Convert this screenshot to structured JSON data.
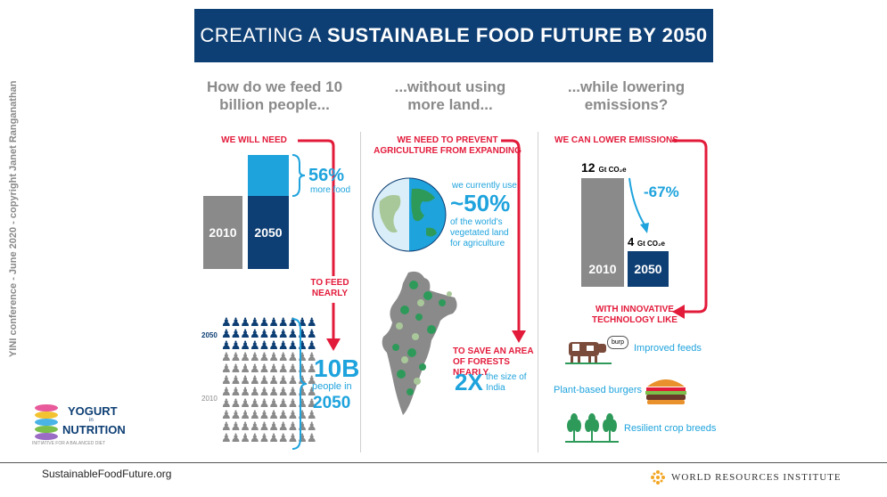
{
  "title": {
    "normal": "CREATING A",
    "bold": "SUSTAINABLE FOOD FUTURE BY 2050"
  },
  "columns": [
    {
      "heading": "How do we feed 10 billion people..."
    },
    {
      "heading": "...without using more land..."
    },
    {
      "heading": "...while lowering emissions?"
    }
  ],
  "col1": {
    "we_will_need": "WE WILL NEED",
    "bar_2010": "2010",
    "bar_2050": "2050",
    "pct": "56%",
    "pct_sub": "more food",
    "to_feed": "TO FEED NEARLY",
    "people_year_top": "2050",
    "people_year_bottom": "2010",
    "big": "10B",
    "big_sub": "people in",
    "big_year": "2050"
  },
  "col2": {
    "prevent": "WE NEED TO PREVENT AGRICULTURE FROM EXPANDING",
    "use_pre": "we currently use",
    "use_pct": "~50%",
    "use_post": "of the world's vegetated land for agriculture",
    "save": "TO SAVE AN AREA OF FORESTS NEARLY",
    "big": "2X",
    "big_sub": "the size of India"
  },
  "col3": {
    "lower": "WE CAN LOWER EMISSIONS",
    "val_2010": "12",
    "unit": "Gt CO₂e",
    "val_2050": "4",
    "change": "-67%",
    "bar_2010": "2010",
    "bar_2050": "2050",
    "with_tech": "WITH INNOVATIVE TECHNOLOGY LIKE",
    "bubble": "burp",
    "items": [
      "Improved feeds",
      "Plant-based burgers",
      "Resilient crop breeds"
    ]
  },
  "sidebar_text": "YINI conference - June 2020 - copyright Janet Ranganathan",
  "logo": {
    "line1": "YOGURT",
    "small": "in",
    "line2": "NUTRITION",
    "tagline": "INITIATIVE FOR A BALANCED DIET"
  },
  "footer": {
    "url": "SustainableFoodFuture.org",
    "org": "WORLD RESOURCES INSTITUTE"
  },
  "colors": {
    "navy": "#0e3f74",
    "blue": "#1ea3dd",
    "red": "#e31b3b",
    "grey": "#8a8a8a"
  }
}
